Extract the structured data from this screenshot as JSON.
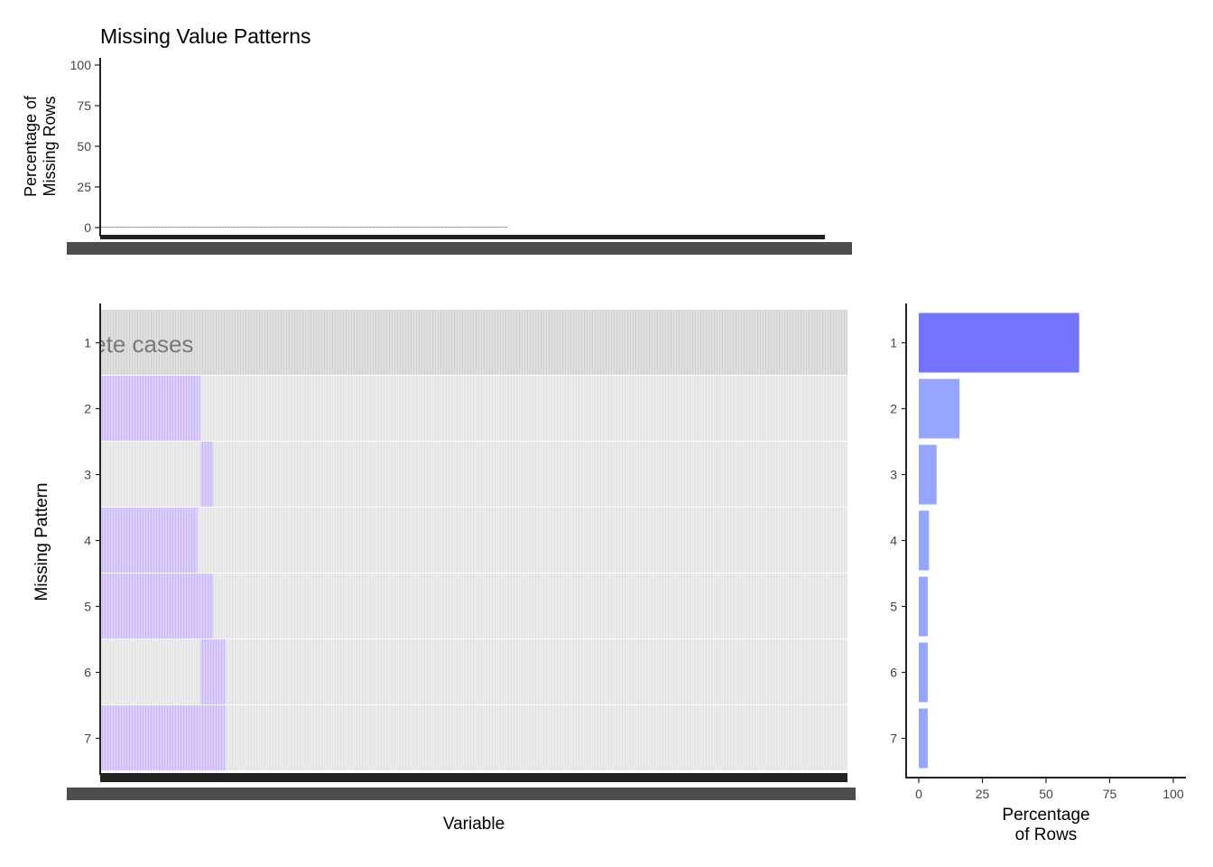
{
  "colors": {
    "missing_fill": "#DCCFFF",
    "missing_stripe": "#CBB8FF",
    "observed_fill": "#EBEBEB",
    "complete_fill": "#DCDCDC",
    "top_bar": "#6B7CFF",
    "pattern_bar_complete": "#7373FF",
    "pattern_bar_other": "#96A5FF",
    "axis": "#222222",
    "tick_text": "#444444"
  },
  "chart_data": [
    {
      "type": "bar",
      "title": "Missing Value Patterns",
      "ylabel": "Percentage of\nMissing Rows",
      "xlabel": "",
      "ylim": [
        0,
        100
      ],
      "yticks": [
        0,
        25,
        50,
        75,
        100
      ],
      "n_variables": 240,
      "note": "per-variable missing percentages near zero",
      "values_summary": {
        "variables_1_to_40": 0.4,
        "variables_41_to_135": 0.15,
        "variables_136_to_240": 0
      }
    },
    {
      "type": "heatmap",
      "xlabel": "Variable",
      "ylabel": "Missing Pattern",
      "patterns": [
        "1",
        "2",
        "3",
        "4",
        "5",
        "6",
        "7"
      ],
      "complete_label": "Complete cases",
      "complete_label_visible": "te cases",
      "n_variables": 240,
      "missing_variable_ranges": [
        [],
        [
          [
            1,
            32
          ]
        ],
        [
          [
            33,
            36
          ]
        ],
        [
          [
            1,
            31
          ]
        ],
        [
          [
            1,
            36
          ]
        ],
        [
          [
            33,
            40
          ]
        ],
        [
          [
            1,
            40
          ]
        ]
      ]
    },
    {
      "type": "bar",
      "orientation": "horizontal",
      "xlabel": "Percentage\nof Rows",
      "xlim": [
        0,
        100
      ],
      "xticks": [
        0,
        25,
        50,
        75,
        100
      ],
      "categories": [
        "1",
        "2",
        "3",
        "4",
        "5",
        "6",
        "7"
      ],
      "values": [
        63,
        16,
        7,
        4,
        3.5,
        3.5,
        3.5
      ]
    }
  ]
}
